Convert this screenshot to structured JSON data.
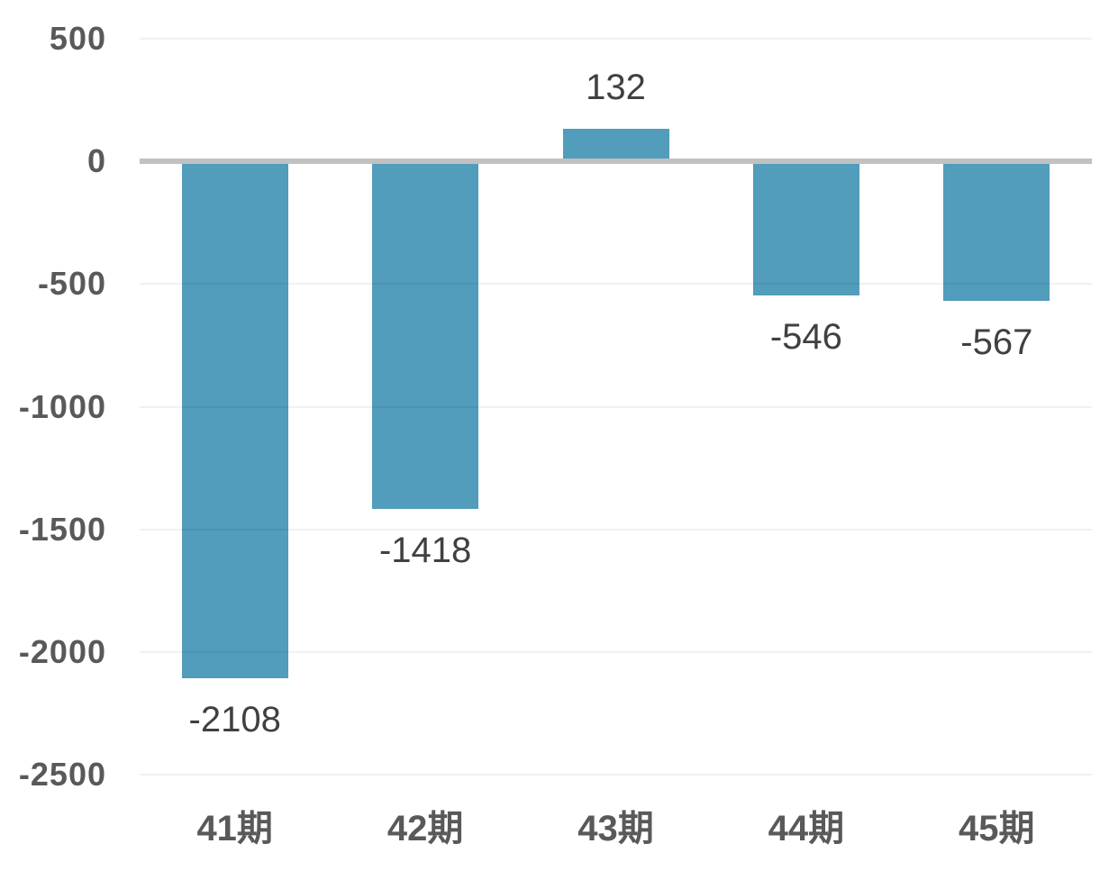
{
  "chart_data": {
    "type": "bar",
    "title": "",
    "xlabel": "",
    "ylabel": "",
    "categories": [
      "41期",
      "42期",
      "43期",
      "44期",
      "45期"
    ],
    "values": [
      -2108,
      -1418,
      132,
      -546,
      -567
    ],
    "data_labels": [
      "-2108",
      "-1418",
      "132",
      "-546",
      "-567"
    ],
    "yticks": [
      500,
      0,
      -500,
      -1000,
      -1500,
      -2000,
      -2500
    ],
    "ytick_labels": [
      "500",
      "0",
      "-500",
      "-1000",
      "-1500",
      "-2000",
      "-2500"
    ],
    "ylim": [
      -2500,
      500
    ],
    "grid": true,
    "legend": "none",
    "style": {
      "bar_color": "#529CBC",
      "gridline_color": "rgba(0,0,0,0.055)",
      "zero_line_color": "#c1c1c1",
      "axis_label_color": "#595959",
      "data_label_color": "#404040",
      "background_color": "#ffffff"
    }
  }
}
